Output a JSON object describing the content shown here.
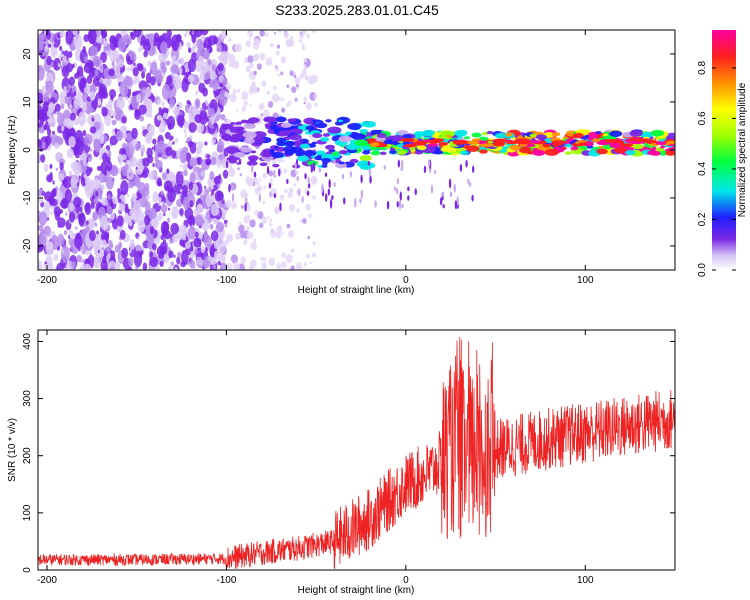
{
  "title": "S233.2025.283.01.01.C45",
  "chart_data": [
    {
      "type": "heatmap",
      "name": "spectrogram",
      "xlabel": "Height of straight line (km)",
      "ylabel": "Frequency (Hz)",
      "xlim": [
        -205,
        150
      ],
      "ylim": [
        -25,
        25
      ],
      "xticks": [
        -200,
        -100,
        0,
        100
      ],
      "xtick_labels": [
        "-200",
        "-100",
        "0",
        "100"
      ],
      "yticks": [
        -20,
        -10,
        0,
        10,
        20
      ],
      "ytick_labels": [
        "-20",
        "-10",
        "0",
        "10",
        "20"
      ],
      "signal_band": {
        "x_start": -100,
        "x_end": 150,
        "center_freq_hz": 1.5,
        "note": "narrow band near 0-3 Hz, peak amplitude ~0.9 from x>=-20 km"
      },
      "colorbar": {
        "label": "Normalized spectral amplitude",
        "range": [
          0.0,
          0.95
        ],
        "ticks": [
          0.0,
          0.2,
          0.4,
          0.6,
          0.8
        ],
        "tick_labels": [
          "0.0",
          "0.2",
          "0.4",
          "0.6",
          "0.8"
        ],
        "colors": [
          "#ffffff",
          "#c9a8ef",
          "#7a28e6",
          "#2020ff",
          "#00e8e8",
          "#00ff40",
          "#a0ff00",
          "#ffff00",
          "#ff9000",
          "#ff2020",
          "#ff00a0"
        ]
      }
    },
    {
      "type": "line",
      "name": "snr",
      "xlabel": "Height of straight line (km)",
      "ylabel": "SNR (10 * v/v)",
      "xlim": [
        -205,
        150
      ],
      "ylim": [
        0,
        420
      ],
      "xticks": [
        -200,
        -100,
        0,
        100
      ],
      "xtick_labels": [
        "-200",
        "-100",
        "0",
        "100"
      ],
      "yticks": [
        0,
        100,
        200,
        300,
        400
      ],
      "ytick_labels": [
        "0",
        "100",
        "200",
        "300",
        "400"
      ],
      "color": "#ee2222",
      "trend": {
        "x": [
          -205,
          -150,
          -100,
          -80,
          -60,
          -40,
          -20,
          0,
          15,
          25,
          35,
          50,
          80,
          100,
          120,
          150
        ],
        "y": [
          18,
          18,
          20,
          30,
          38,
          50,
          90,
          150,
          175,
          210,
          200,
          210,
          230,
          240,
          250,
          265
        ]
      }
    }
  ]
}
